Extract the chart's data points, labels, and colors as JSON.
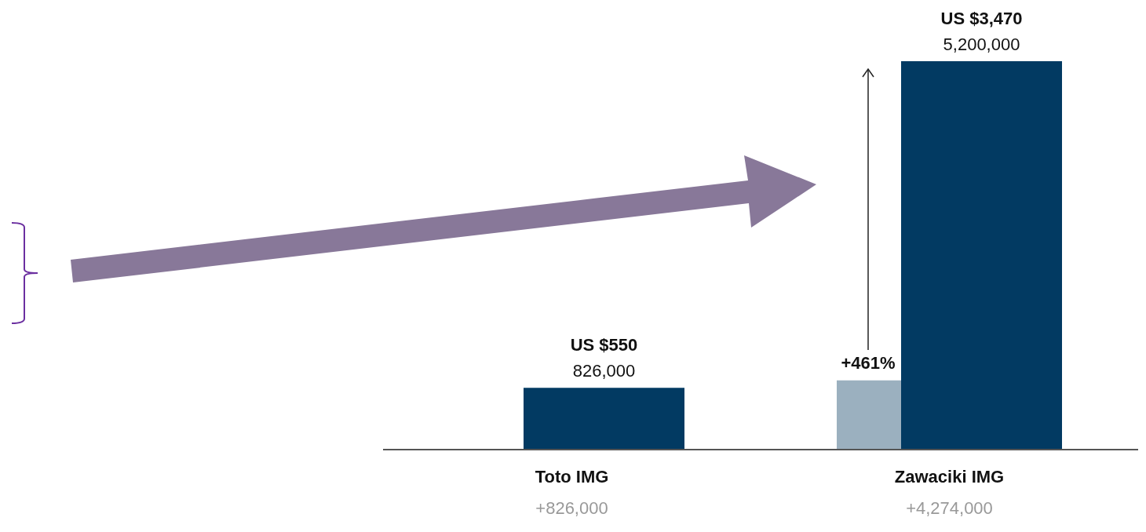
{
  "chart_data": {
    "type": "bar",
    "categories": [
      "Toto IMG",
      "Zawaciki IMG"
    ],
    "series": [
      {
        "color": "#9bb0bf",
        "values": [
          0,
          926000
        ]
      },
      {
        "color": "#023a62",
        "values": [
          826000,
          5200000
        ],
        "value_labels": [
          "826,000",
          "5,200,000"
        ]
      }
    ],
    "annotations": [
      {
        "text": "US $550",
        "x": "Toto IMG",
        "y": 826000
      },
      {
        "text": "US $3,470",
        "x": "Zawaciki IMG",
        "y": 5200000
      },
      "+461%",
      "+826,000",
      "+4,274,000"
    ]
  }
}
